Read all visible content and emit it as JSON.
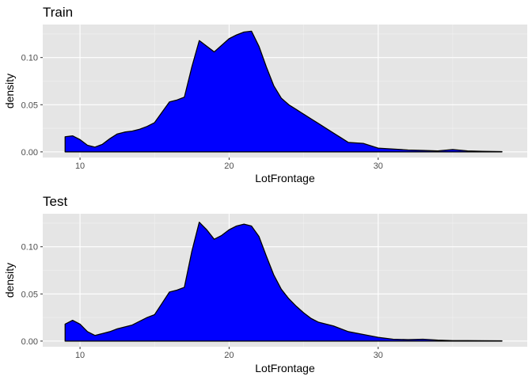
{
  "chart_data": [
    {
      "type": "area",
      "title": "Train",
      "xlabel": "LotFrontage",
      "ylabel": "density",
      "xlim": [
        7.5,
        40
      ],
      "ylim": [
        -0.006,
        0.135
      ],
      "x_ticks": [
        10,
        20,
        30
      ],
      "x_minor_ticks": [
        15,
        25,
        35
      ],
      "y_ticks": [
        0.0,
        0.05,
        0.1
      ],
      "y_tick_labels": [
        "0.00",
        "0.05",
        "0.10"
      ],
      "y_minor_ticks": [
        0.025,
        0.075,
        0.125
      ],
      "fill_color": "#0000ff",
      "outline_color": "#000000",
      "grid": true,
      "x": [
        9.0,
        9.5,
        10.0,
        10.5,
        11.0,
        11.5,
        12.0,
        12.5,
        13.0,
        13.5,
        14.0,
        14.5,
        15.0,
        15.5,
        16.0,
        16.5,
        17.0,
        17.5,
        18.0,
        18.5,
        19.0,
        19.5,
        20.0,
        20.5,
        21.0,
        21.5,
        22.0,
        22.5,
        23.0,
        23.5,
        24.0,
        24.5,
        25.0,
        25.5,
        26.0,
        26.5,
        27.0,
        27.5,
        28.0,
        29.0,
        30.0,
        31.0,
        32.0,
        33.0,
        34.0,
        35.0,
        36.0,
        37.0,
        38.3
      ],
      "y": [
        0.016,
        0.017,
        0.013,
        0.007,
        0.005,
        0.008,
        0.014,
        0.019,
        0.021,
        0.022,
        0.024,
        0.027,
        0.031,
        0.042,
        0.053,
        0.055,
        0.058,
        0.09,
        0.118,
        0.112,
        0.106,
        0.113,
        0.12,
        0.124,
        0.127,
        0.128,
        0.112,
        0.09,
        0.07,
        0.057,
        0.05,
        0.045,
        0.04,
        0.035,
        0.03,
        0.025,
        0.02,
        0.015,
        0.01,
        0.009,
        0.004,
        0.003,
        0.002,
        0.0015,
        0.001,
        0.0025,
        0.001,
        0.0006,
        0.0003
      ]
    },
    {
      "type": "area",
      "title": "Test",
      "xlabel": "LotFrontage",
      "ylabel": "density",
      "xlim": [
        7.5,
        40
      ],
      "ylim": [
        -0.006,
        0.135
      ],
      "x_ticks": [
        10,
        20,
        30
      ],
      "x_minor_ticks": [
        15,
        25,
        35
      ],
      "y_ticks": [
        0.0,
        0.05,
        0.1
      ],
      "y_tick_labels": [
        "0.00",
        "0.05",
        "0.10"
      ],
      "y_minor_ticks": [
        0.025,
        0.075,
        0.125
      ],
      "fill_color": "#0000ff",
      "outline_color": "#000000",
      "grid": true,
      "x": [
        9.0,
        9.5,
        10.0,
        10.5,
        11.0,
        11.5,
        12.0,
        12.5,
        13.0,
        13.5,
        14.0,
        14.5,
        15.0,
        15.5,
        16.0,
        16.5,
        17.0,
        17.5,
        18.0,
        18.5,
        19.0,
        19.5,
        20.0,
        20.5,
        21.0,
        21.5,
        22.0,
        22.5,
        23.0,
        23.5,
        24.0,
        24.5,
        25.0,
        25.5,
        26.0,
        26.5,
        27.0,
        27.5,
        28.0,
        29.0,
        30.0,
        31.0,
        32.0,
        33.0,
        34.0,
        35.0,
        36.0,
        37.0,
        38.3
      ],
      "y": [
        0.018,
        0.022,
        0.018,
        0.01,
        0.006,
        0.008,
        0.01,
        0.013,
        0.015,
        0.017,
        0.021,
        0.025,
        0.028,
        0.04,
        0.052,
        0.054,
        0.057,
        0.095,
        0.126,
        0.118,
        0.108,
        0.112,
        0.118,
        0.122,
        0.124,
        0.122,
        0.111,
        0.09,
        0.07,
        0.055,
        0.045,
        0.037,
        0.03,
        0.024,
        0.02,
        0.018,
        0.016,
        0.013,
        0.01,
        0.007,
        0.004,
        0.002,
        0.0015,
        0.002,
        0.001,
        0.0005,
        0.0005,
        0.0004,
        0.0003
      ]
    }
  ]
}
